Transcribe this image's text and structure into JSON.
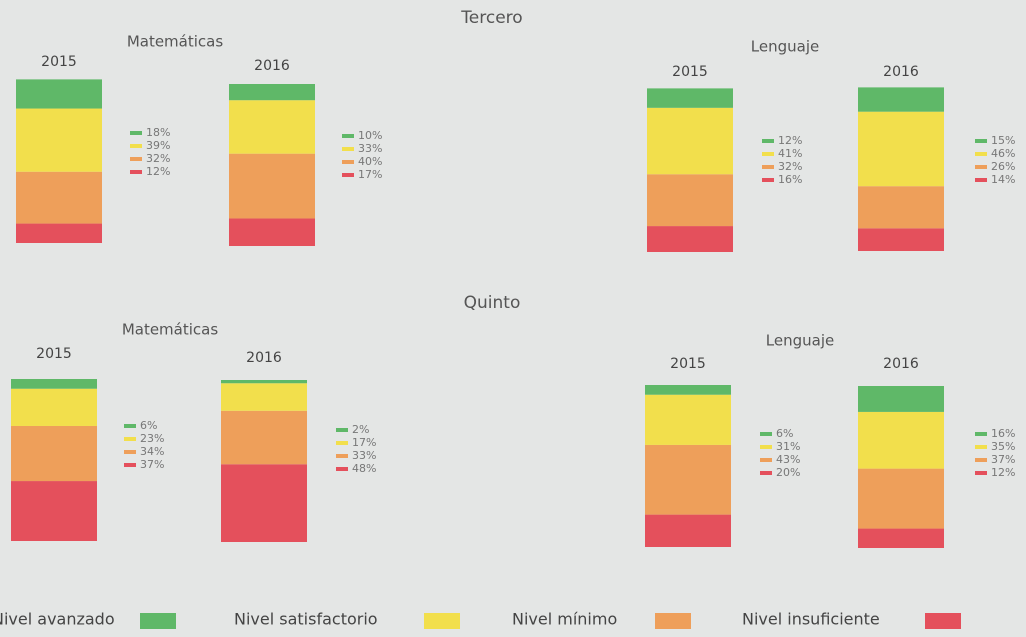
{
  "sections": [
    {
      "title": "Tercero",
      "chart_data": [
        {
          "type": "bar",
          "title": "Matemáticas",
          "categories": [
            "2015",
            "2016"
          ],
          "series": [
            {
              "values": [
                18,
                10
              ],
              "value_labels": [
                "18%",
                "10%"
              ]
            },
            {
              "values": [
                39,
                33
              ],
              "value_labels": [
                "39%",
                "33%"
              ]
            },
            {
              "values": [
                32,
                40
              ],
              "value_labels": [
                "32%",
                "40%"
              ]
            },
            {
              "values": [
                12,
                17
              ],
              "value_labels": [
                "12%",
                "17%"
              ]
            }
          ]
        },
        {
          "type": "bar",
          "title": "Lenguaje",
          "categories": [
            "2015",
            "2016"
          ],
          "series": [
            {
              "values": [
                12,
                15
              ],
              "value_labels": [
                "12%",
                "15%"
              ]
            },
            {
              "values": [
                41,
                46
              ],
              "value_labels": [
                "41%",
                "46%"
              ]
            },
            {
              "values": [
                32,
                26
              ],
              "value_labels": [
                "32%",
                "26%"
              ]
            },
            {
              "values": [
                16,
                14
              ],
              "value_labels": [
                "16%",
                "14%"
              ]
            }
          ]
        }
      ]
    },
    {
      "title": "Quinto",
      "chart_data": [
        {
          "type": "bar",
          "title": "Matemáticas",
          "categories": [
            "2015",
            "2016"
          ],
          "series": [
            {
              "values": [
                6,
                2
              ],
              "value_labels": [
                "6%",
                "2%"
              ]
            },
            {
              "values": [
                23,
                17
              ],
              "value_labels": [
                "23%",
                "17%"
              ]
            },
            {
              "values": [
                34,
                33
              ],
              "value_labels": [
                "34%",
                "33%"
              ]
            },
            {
              "values": [
                37,
                48
              ],
              "value_labels": [
                "37%",
                "48%"
              ]
            }
          ]
        },
        {
          "type": "bar",
          "title": "Lenguaje",
          "categories": [
            "2015",
            "2016"
          ],
          "series": [
            {
              "values": [
                6,
                16
              ],
              "value_labels": [
                "6%",
                "16%"
              ]
            },
            {
              "values": [
                31,
                35
              ],
              "value_labels": [
                "31%",
                "35%"
              ]
            },
            {
              "values": [
                43,
                37
              ],
              "value_labels": [
                "43%",
                "37%"
              ]
            },
            {
              "values": [
                20,
                12
              ],
              "value_labels": [
                "20%",
                "12%"
              ]
            }
          ]
        }
      ]
    }
  ],
  "legend": [
    {
      "name": "Nivel avanzado",
      "color": "#5fb868"
    },
    {
      "name": "Nivel satisfactorio",
      "color": "#f2df4c"
    },
    {
      "name": "Nivel mínimo",
      "color": "#ee9f5a"
    },
    {
      "name": "Nivel insuficiente",
      "color": "#e4505c"
    }
  ]
}
